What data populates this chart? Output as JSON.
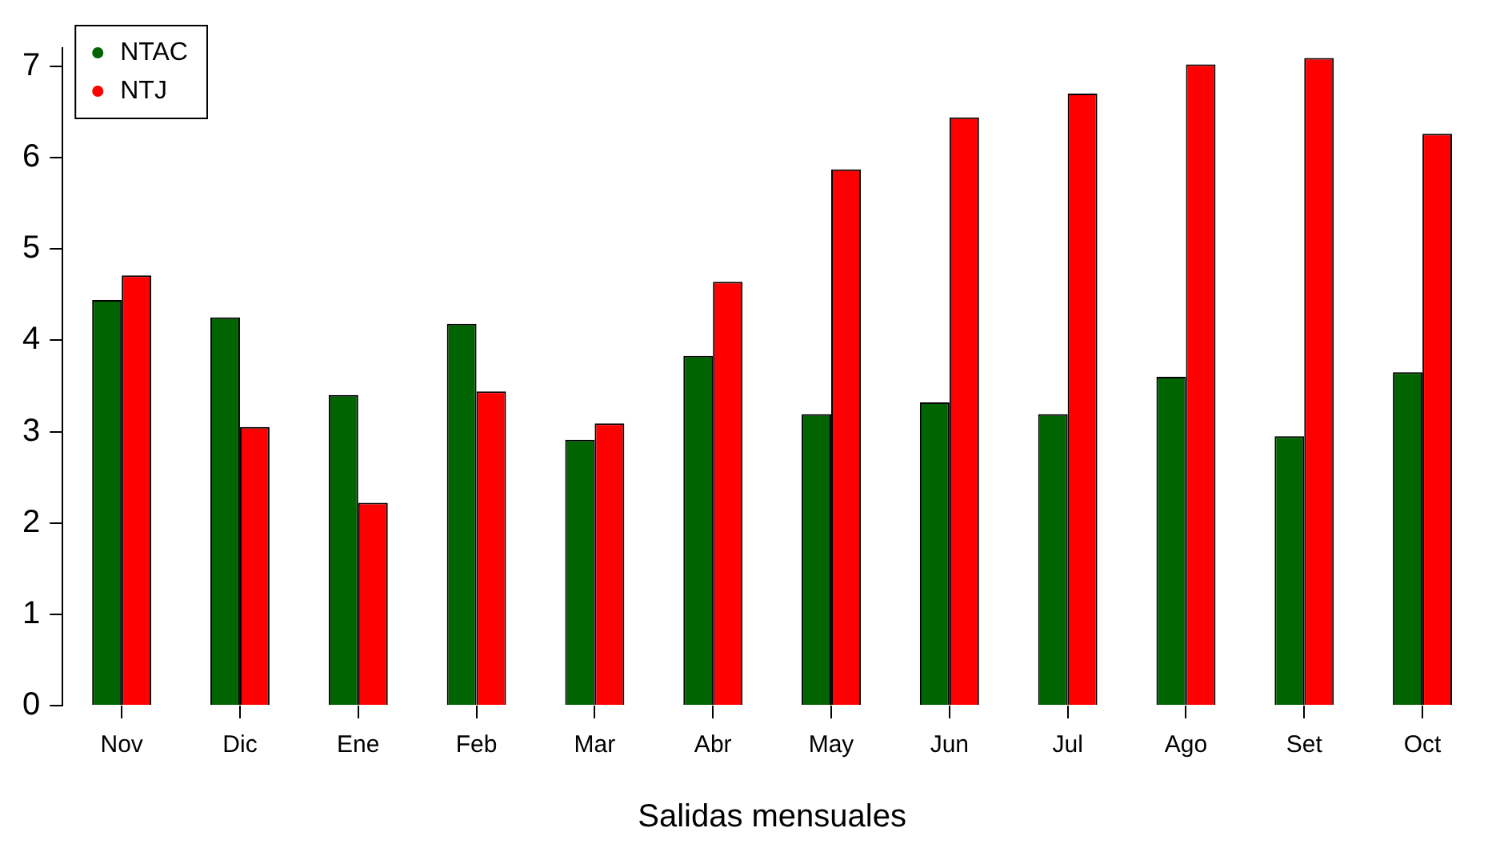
{
  "chart_data": {
    "type": "bar",
    "xlabel": "Salidas mensuales",
    "categories": [
      "Nov",
      "Dic",
      "Ene",
      "Feb",
      "Mar",
      "Abr",
      "May",
      "Jun",
      "Jul",
      "Ago",
      "Set",
      "Oct"
    ],
    "series": [
      {
        "name": "NTAC",
        "color": "#006400",
        "values": [
          4.44,
          4.25,
          3.4,
          4.18,
          2.91,
          3.83,
          3.19,
          3.32,
          3.19,
          3.6,
          2.95,
          3.65
        ]
      },
      {
        "name": "NTJ",
        "color": "#ff0000",
        "values": [
          4.71,
          3.05,
          2.22,
          3.44,
          3.09,
          4.64,
          5.87,
          6.44,
          6.7,
          7.02,
          7.09,
          6.26
        ]
      }
    ],
    "ylim": [
      0,
      7.2
    ],
    "yticks": [
      0,
      1,
      2,
      3,
      4,
      5,
      6,
      7
    ],
    "grid": false,
    "legend": "top left",
    "marker": "circle"
  }
}
